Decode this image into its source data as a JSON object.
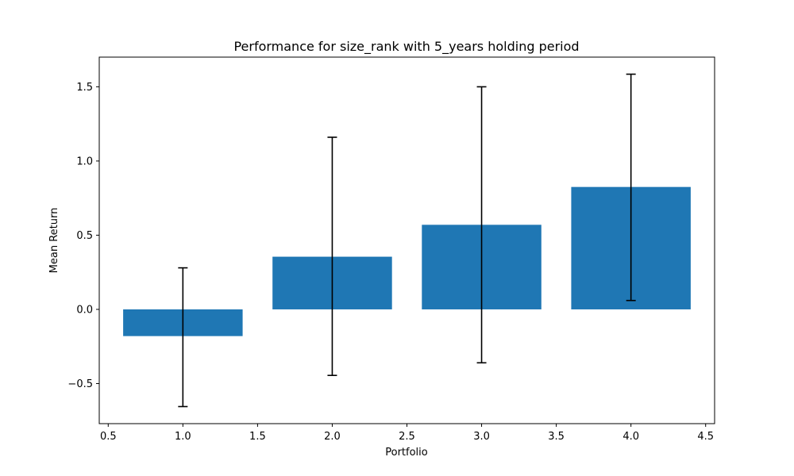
{
  "chart_data": {
    "type": "bar",
    "title": "Performance for size_rank with 5_years holding period",
    "xlabel": "Portfolio",
    "ylabel": "Mean Return",
    "x": [
      1.0,
      2.0,
      3.0,
      4.0
    ],
    "values": [
      -0.18,
      0.355,
      0.57,
      0.825
    ],
    "error_low": [
      -0.655,
      -0.445,
      -0.36,
      0.06
    ],
    "error_high": [
      0.28,
      1.16,
      1.5,
      1.585
    ],
    "bar_width": 0.8,
    "xlim": [
      0.44,
      4.56
    ],
    "ylim": [
      -0.77,
      1.7
    ],
    "xticks": [
      0.5,
      1.0,
      1.5,
      2.0,
      2.5,
      3.0,
      3.5,
      4.0,
      4.5
    ],
    "xtick_labels": [
      "0.5",
      "1.0",
      "1.5",
      "2.0",
      "2.5",
      "3.0",
      "3.5",
      "4.0",
      "4.5"
    ],
    "yticks": [
      -0.5,
      0.0,
      0.5,
      1.0,
      1.5
    ],
    "ytick_labels": [
      "−0.5",
      "0.0",
      "0.5",
      "1.0",
      "1.5"
    ],
    "bar_color": "#1f77b4",
    "error_color": "#000000",
    "grid": false,
    "legend": false
  }
}
